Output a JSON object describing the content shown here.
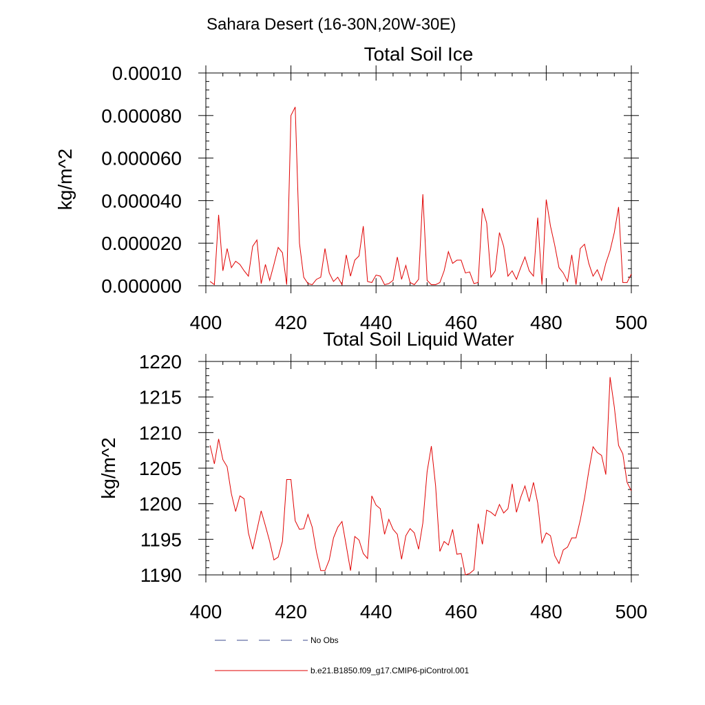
{
  "header": {
    "title": "Sahara Desert (16-30N,20W-30E)"
  },
  "legend": {
    "items": [
      {
        "label": "No Obs",
        "color": "#3b4a8c",
        "dashed": true
      },
      {
        "label": "b.e21.B1850.f09_g17.CMIP6-piControl.001",
        "color": "#e00000",
        "dashed": false
      }
    ]
  },
  "chart_data": [
    {
      "type": "line",
      "title": "Total Soil Ice",
      "xlabel": "",
      "ylabel": "kg/m^2",
      "xlim": [
        400,
        500
      ],
      "ylim": [
        0,
        0.0001
      ],
      "xticks": [
        400,
        420,
        440,
        460,
        480,
        500
      ],
      "xtick_labels": [
        "400",
        "420",
        "440",
        "460",
        "480",
        "500"
      ],
      "yticks": [
        0,
        2e-05,
        4e-05,
        6e-05,
        8e-05,
        0.0001
      ],
      "ytick_labels": [
        "0.000000",
        "0.000020",
        "0.000040",
        "0.000060",
        "0.000080",
        "0.00010"
      ],
      "grid": false,
      "series": [
        {
          "name": "b.e21.B1850.f09_g17.CMIP6-piControl.001",
          "color": "#e00000",
          "x": [
            401,
            402,
            403,
            404,
            405,
            406,
            407,
            408,
            409,
            410,
            411,
            412,
            413,
            414,
            415,
            416,
            417,
            418,
            419,
            420,
            421,
            422,
            423,
            424,
            425,
            426,
            427,
            428,
            429,
            430,
            431,
            432,
            433,
            434,
            435,
            436,
            437,
            438,
            439,
            440,
            441,
            442,
            443,
            444,
            445,
            446,
            447,
            448,
            449,
            450,
            451,
            452,
            453,
            454,
            455,
            456,
            457,
            458,
            459,
            460,
            461,
            462,
            463,
            464,
            465,
            466,
            467,
            468,
            469,
            470,
            471,
            472,
            473,
            474,
            475,
            476,
            477,
            478,
            479,
            480,
            481,
            482,
            483,
            484,
            485,
            486,
            487,
            488,
            489,
            490,
            491,
            492,
            493,
            494,
            495,
            496,
            497,
            498,
            499,
            500
          ],
          "y": [
            2e-06,
            5e-07,
            3.33e-05,
            7e-06,
            1.75e-05,
            8.5e-06,
            1.15e-05,
            1e-05,
            7e-06,
            4.5e-06,
            1.85e-05,
            2.15e-05,
            1e-06,
            1e-05,
            2.5e-06,
            1e-05,
            1.8e-05,
            1.55e-05,
            5e-07,
            8e-05,
            8.4e-05,
            2e-05,
            4e-06,
            1e-06,
            5e-07,
            3e-06,
            4e-06,
            1.75e-05,
            6e-06,
            2e-06,
            4e-06,
            5e-07,
            1.45e-05,
            4.5e-06,
            1.2e-05,
            1.4e-05,
            2.8e-05,
            2e-06,
            1.5e-06,
            5e-06,
            4.5e-06,
            5e-07,
            1e-06,
            2.5e-06,
            1.35e-05,
            3e-06,
            9.5e-06,
            1.5e-06,
            5e-07,
            3e-06,
            4.3e-05,
            2.5e-06,
            5e-07,
            5e-07,
            1.5e-06,
            7e-06,
            1.6e-05,
            1.05e-05,
            1.2e-05,
            1.2e-05,
            6e-06,
            6.5e-06,
            1e-06,
            1.5e-06,
            3.65e-05,
            2.95e-05,
            4e-06,
            7e-06,
            2.5e-05,
            1.85e-05,
            4.5e-06,
            7e-06,
            3e-06,
            8.5e-06,
            1.35e-05,
            7e-06,
            4.5e-06,
            3.2e-05,
            5e-07,
            4.05e-05,
            2.8e-05,
            1.9e-05,
            8.5e-06,
            6e-06,
            2e-06,
            1.45e-05,
            5e-07,
            1.75e-05,
            1.95e-05,
            1.05e-05,
            4.5e-06,
            7.5e-06,
            2.5e-06,
            1.05e-05,
            1.65e-05,
            2.5e-05,
            3.7e-05,
            1.5e-06,
            1.5e-06,
            5.5e-06
          ]
        }
      ]
    },
    {
      "type": "line",
      "title": "Total Soil Liquid Water",
      "xlabel": "",
      "ylabel": "kg/m^2",
      "xlim": [
        400,
        500
      ],
      "ylim": [
        1190,
        1220
      ],
      "xticks": [
        400,
        420,
        440,
        460,
        480,
        500
      ],
      "xtick_labels": [
        "400",
        "420",
        "440",
        "460",
        "480",
        "500"
      ],
      "yticks": [
        1190,
        1195,
        1200,
        1205,
        1210,
        1215,
        1220
      ],
      "ytick_labels": [
        "1190",
        "1195",
        "1200",
        "1205",
        "1210",
        "1215",
        "1220"
      ],
      "grid": false,
      "series": [
        {
          "name": "b.e21.B1850.f09_g17.CMIP6-piControl.001",
          "color": "#e00000",
          "x": [
            401,
            402,
            403,
            404,
            405,
            406,
            407,
            408,
            409,
            410,
            411,
            412,
            413,
            414,
            415,
            416,
            417,
            418,
            419,
            420,
            421,
            422,
            423,
            424,
            425,
            426,
            427,
            428,
            429,
            430,
            431,
            432,
            433,
            434,
            435,
            436,
            437,
            438,
            439,
            440,
            441,
            442,
            443,
            444,
            445,
            446,
            447,
            448,
            449,
            450,
            451,
            452,
            453,
            454,
            455,
            456,
            457,
            458,
            459,
            460,
            461,
            462,
            463,
            464,
            465,
            466,
            467,
            468,
            469,
            470,
            471,
            472,
            473,
            474,
            475,
            476,
            477,
            478,
            479,
            480,
            481,
            482,
            483,
            484,
            485,
            486,
            487,
            488,
            489,
            490,
            491,
            492,
            493,
            494,
            495,
            496,
            497,
            498,
            499,
            500
          ],
          "y": [
            1208.2,
            1205.6,
            1209.1,
            1206.2,
            1205.2,
            1201.4,
            1198.9,
            1201.1,
            1200.7,
            1195.9,
            1193.6,
            1196.3,
            1199.0,
            1196.9,
            1194.7,
            1192.1,
            1192.5,
            1194.7,
            1203.4,
            1203.4,
            1197.6,
            1196.4,
            1196.5,
            1198.5,
            1196.7,
            1193.2,
            1190.6,
            1190.6,
            1192.1,
            1195.2,
            1196.7,
            1197.5,
            1194.1,
            1190.6,
            1195.4,
            1194.9,
            1193.0,
            1192.3,
            1201.1,
            1199.8,
            1199.3,
            1195.7,
            1197.8,
            1196.4,
            1195.7,
            1192.2,
            1195.5,
            1196.5,
            1195.9,
            1193.6,
            1197.3,
            1204.5,
            1208.1,
            1202.5,
            1193.3,
            1194.7,
            1194.2,
            1196.4,
            1192.9,
            1193.0,
            1190.0,
            1190.2,
            1190.7,
            1197.2,
            1194.3,
            1199.1,
            1198.8,
            1198.3,
            1199.9,
            1198.7,
            1199.3,
            1202.8,
            1198.8,
            1200.9,
            1202.5,
            1200.3,
            1203.0,
            1200.1,
            1194.5,
            1195.9,
            1195.5,
            1192.7,
            1191.6,
            1193.5,
            1193.9,
            1195.2,
            1195.2,
            1197.7,
            1200.8,
            1204.6,
            1208.0,
            1207.2,
            1206.8,
            1204.1,
            1217.8,
            1213.6,
            1208.2,
            1207.0,
            1203.0,
            1201.8
          ]
        }
      ]
    }
  ]
}
